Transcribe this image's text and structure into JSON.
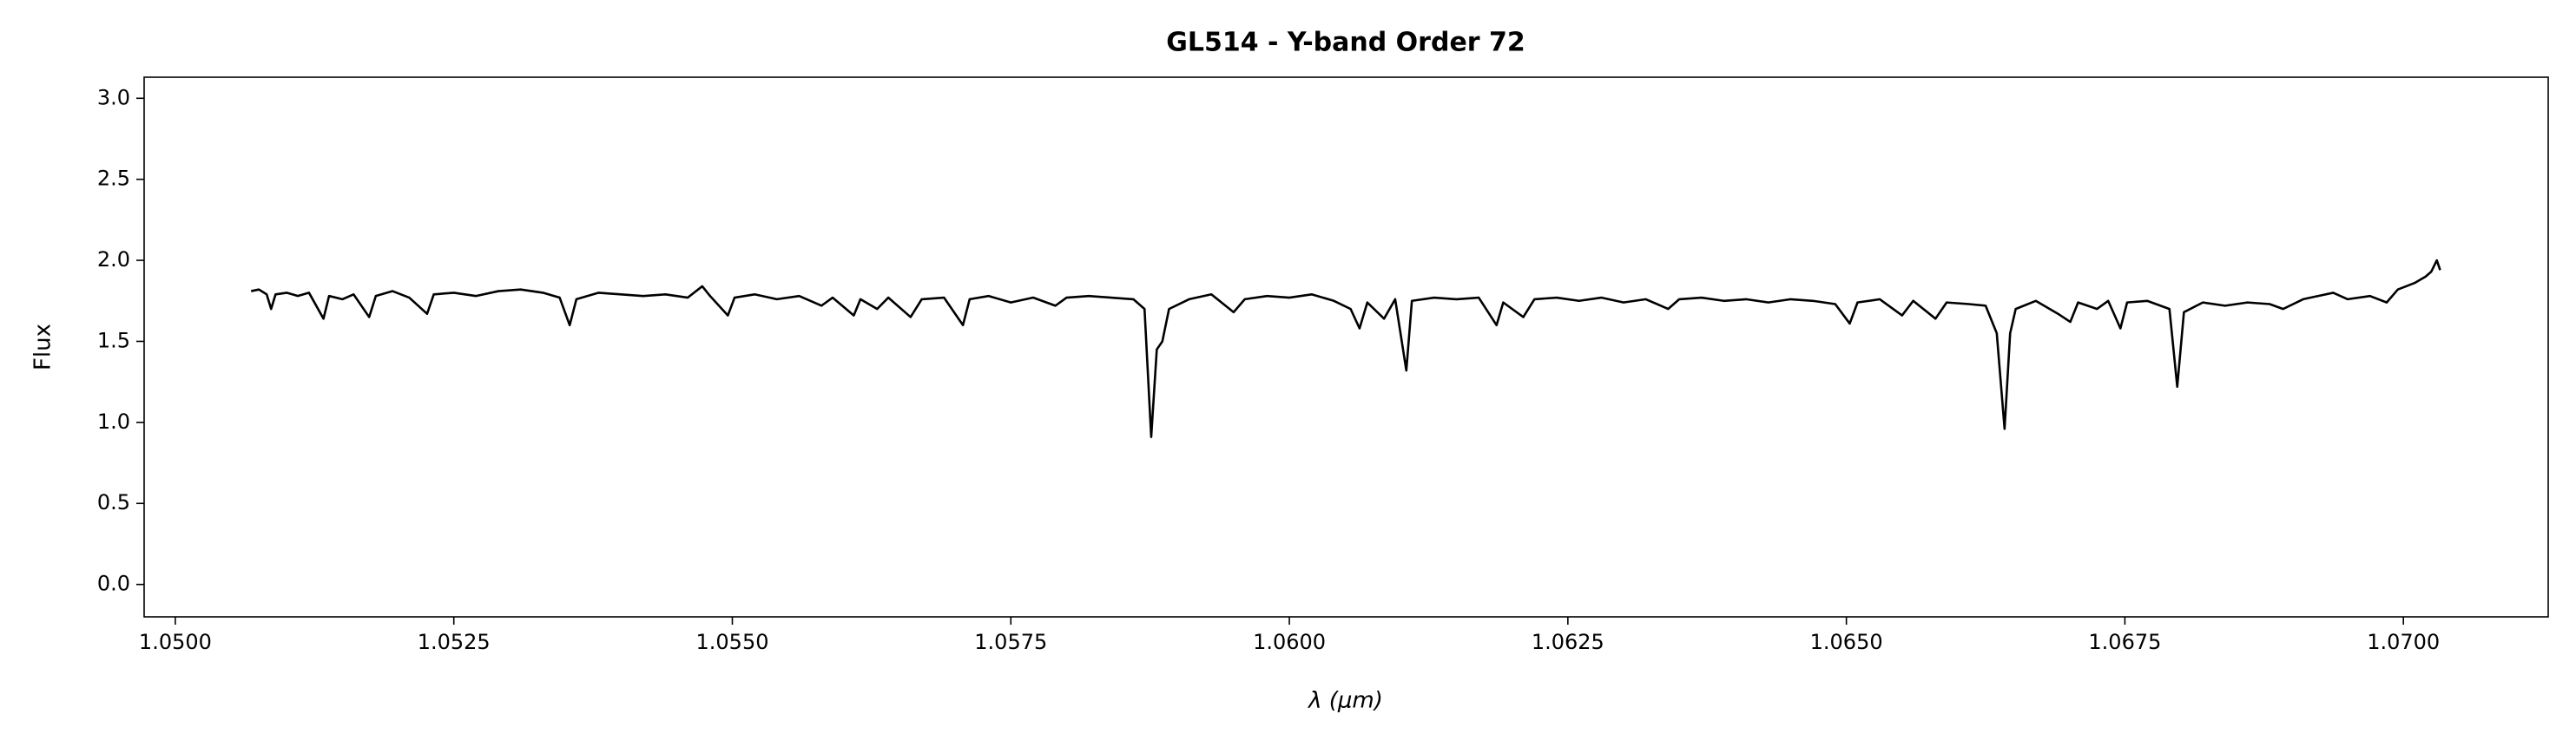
{
  "chart_data": {
    "type": "line",
    "title": "GL514 - Y-band Order 72",
    "x_label": "λ (μm)",
    "y_label": "Flux",
    "color": "#000000",
    "grid": false,
    "xlim": [
      1.04972,
      1.0713
    ],
    "ylim": [
      -0.2,
      3.13
    ],
    "xticks": [
      {
        "value": 1.05,
        "label": "1.0500"
      },
      {
        "value": 1.0525,
        "label": "1.0525"
      },
      {
        "value": 1.055,
        "label": "1.0550"
      },
      {
        "value": 1.0575,
        "label": "1.0575"
      },
      {
        "value": 1.06,
        "label": "1.0600"
      },
      {
        "value": 1.0625,
        "label": "1.0625"
      },
      {
        "value": 1.065,
        "label": "1.0650"
      },
      {
        "value": 1.0675,
        "label": "1.0675"
      },
      {
        "value": 1.07,
        "label": "1.0700"
      }
    ],
    "yticks": [
      {
        "value": 0,
        "label": "0.0"
      },
      0.5,
      {
        "value": 1,
        "label": "1.0"
      },
      1.5,
      {
        "value": 2,
        "label": "2.0"
      },
      2.5,
      {
        "value": 3,
        "label": "3.0"
      }
    ],
    "x": [
      1.05068,
      1.05075,
      1.05082,
      1.05086,
      1.0509,
      1.051,
      1.0511,
      1.0512,
      1.05133,
      1.05138,
      1.0515,
      1.0516,
      1.05174,
      1.0518,
      1.05195,
      1.0521,
      1.05226,
      1.05232,
      1.0525,
      1.0527,
      1.0529,
      1.0531,
      1.0533,
      1.05345,
      1.05354,
      1.0536,
      1.0538,
      1.054,
      1.0542,
      1.0544,
      1.0546,
      1.05473,
      1.0548,
      1.05496,
      1.05502,
      1.0552,
      1.0554,
      1.0556,
      1.0558,
      1.0559,
      1.05609,
      1.05615,
      1.0563,
      1.0564,
      1.0566,
      1.0567,
      1.0569,
      1.05707,
      1.05713,
      1.0573,
      1.0575,
      1.0577,
      1.0579,
      1.058,
      1.0582,
      1.0584,
      1.0586,
      1.0587,
      1.05876,
      1.05881,
      1.05886,
      1.05892,
      1.0591,
      1.0593,
      1.0595,
      1.0596,
      1.0598,
      1.06,
      1.0602,
      1.0604,
      1.06055,
      1.06063,
      1.0607,
      1.06085,
      1.06095,
      1.06105,
      1.0611,
      1.0613,
      1.0615,
      1.0617,
      1.06186,
      1.06192,
      1.0621,
      1.0622,
      1.0624,
      1.0626,
      1.0628,
      1.063,
      1.0632,
      1.0634,
      1.0635,
      1.0637,
      1.0639,
      1.0641,
      1.0643,
      1.0645,
      1.0647,
      1.0649,
      1.06503,
      1.0651,
      1.0653,
      1.0655,
      1.0656,
      1.0658,
      1.0659,
      1.0661,
      1.06625,
      1.06635,
      1.06642,
      1.06647,
      1.06652,
      1.0667,
      1.0669,
      1.06701,
      1.06708,
      1.06725,
      1.06735,
      1.06746,
      1.06752,
      1.0677,
      1.0679,
      1.06797,
      1.06803,
      1.0682,
      1.0684,
      1.0686,
      1.0688,
      1.06892,
      1.0691,
      1.06937,
      1.0695,
      1.0697,
      1.06985,
      1.06995,
      1.0701,
      1.0702,
      1.07025,
      1.0703,
      1.07033
    ],
    "values": [
      1.81,
      1.82,
      1.79,
      1.7,
      1.79,
      1.8,
      1.78,
      1.8,
      1.64,
      1.78,
      1.76,
      1.79,
      1.65,
      1.78,
      1.81,
      1.77,
      1.67,
      1.79,
      1.8,
      1.78,
      1.81,
      1.82,
      1.8,
      1.77,
      1.6,
      1.76,
      1.8,
      1.79,
      1.78,
      1.79,
      1.77,
      1.84,
      1.78,
      1.66,
      1.77,
      1.79,
      1.76,
      1.78,
      1.72,
      1.77,
      1.66,
      1.76,
      1.7,
      1.77,
      1.65,
      1.76,
      1.77,
      1.6,
      1.76,
      1.78,
      1.74,
      1.77,
      1.72,
      1.77,
      1.78,
      1.77,
      1.76,
      1.7,
      0.91,
      1.45,
      1.5,
      1.7,
      1.76,
      1.79,
      1.68,
      1.76,
      1.78,
      1.77,
      1.79,
      1.75,
      1.7,
      1.58,
      1.74,
      1.64,
      1.76,
      1.32,
      1.75,
      1.77,
      1.76,
      1.77,
      1.6,
      1.74,
      1.65,
      1.76,
      1.77,
      1.75,
      1.77,
      1.74,
      1.76,
      1.7,
      1.76,
      1.77,
      1.75,
      1.76,
      1.74,
      1.76,
      1.75,
      1.73,
      1.61,
      1.74,
      1.76,
      1.66,
      1.75,
      1.64,
      1.74,
      1.73,
      1.72,
      1.55,
      0.96,
      1.55,
      1.7,
      1.75,
      1.67,
      1.62,
      1.74,
      1.7,
      1.75,
      1.58,
      1.74,
      1.75,
      1.7,
      1.22,
      1.68,
      1.74,
      1.72,
      1.74,
      1.73,
      1.7,
      1.76,
      1.8,
      1.76,
      1.78,
      1.74,
      1.82,
      1.86,
      1.9,
      1.93,
      2.0,
      1.94
    ]
  }
}
